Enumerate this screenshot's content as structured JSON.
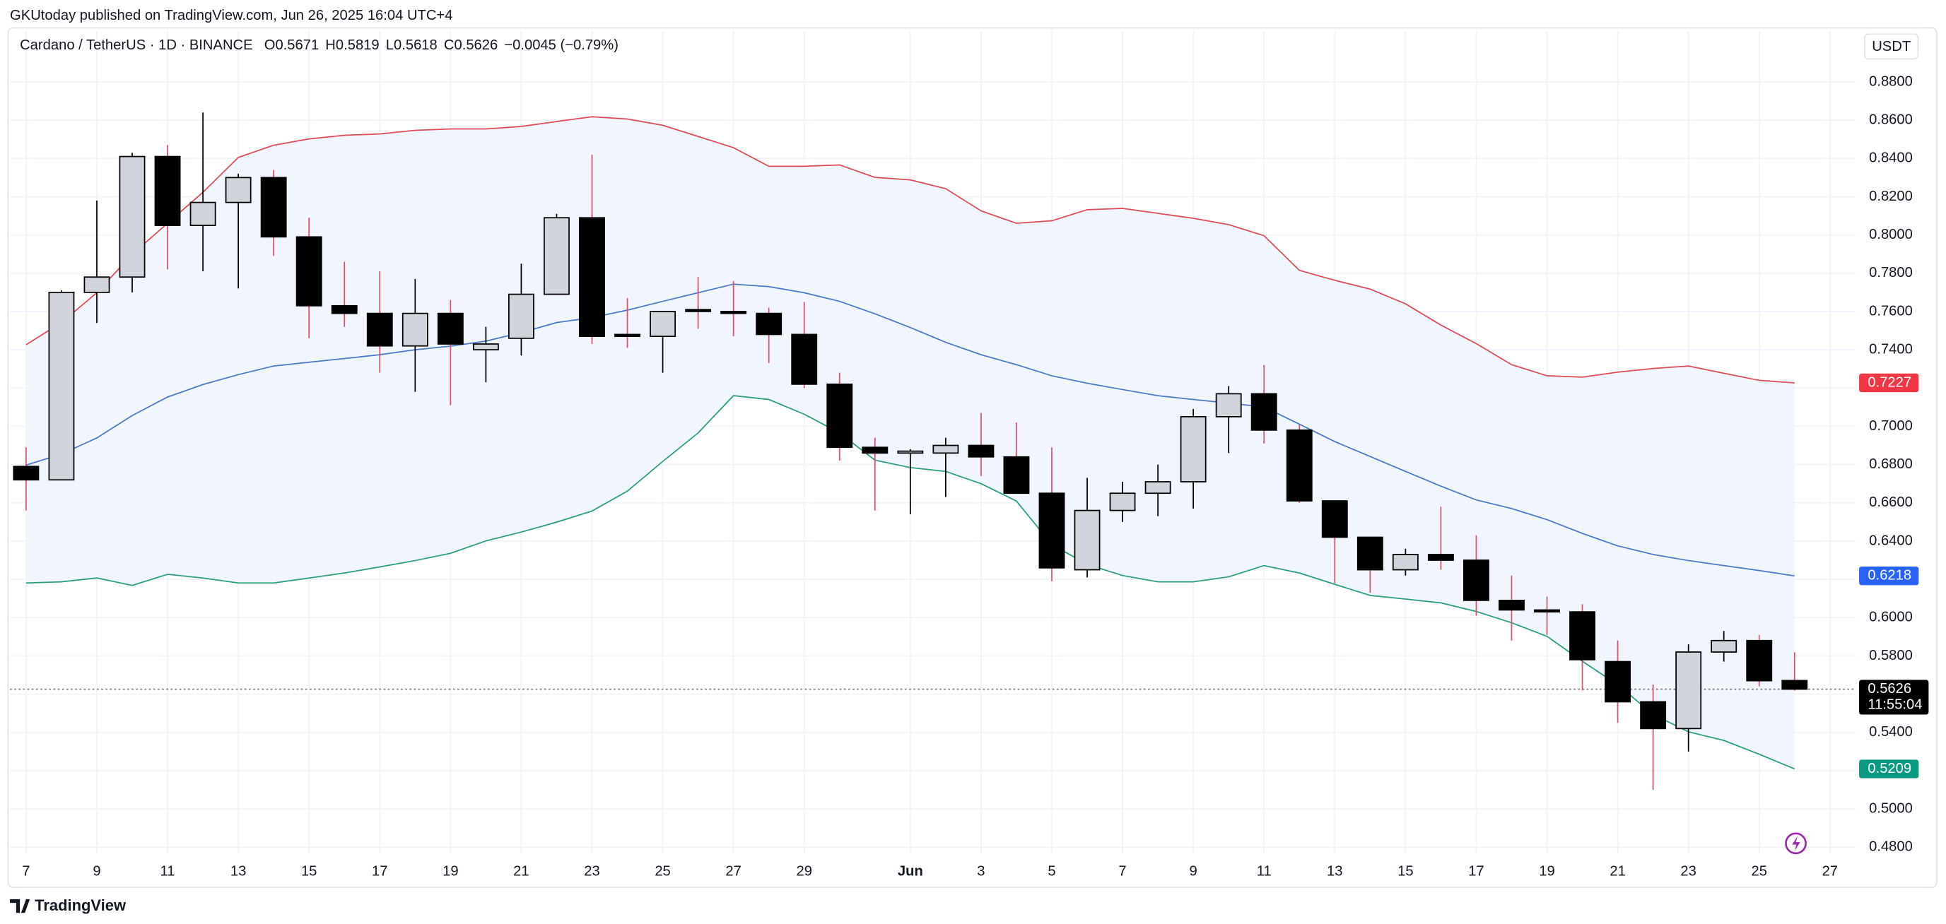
{
  "header": {
    "publisher": "GKUtoday published on TradingView.com, Jun 26, 2025 16:04 UTC+4",
    "symbol": "Cardano / TetherUS · 1D · BINANCE",
    "o": "O",
    "h": "H",
    "l": "L",
    "c": "C",
    "change": "−0.0045 (−0.79%)",
    "currency": "USDT",
    "countdown": "11:55:04",
    "brand": "TradingView"
  },
  "chart_data": {
    "type": "candlestick",
    "categories": [
      "7",
      null,
      "9",
      null,
      "11",
      null,
      "13",
      null,
      "15",
      null,
      "17",
      null,
      "19",
      null,
      "21",
      null,
      "23",
      null,
      "25",
      null,
      "27",
      null,
      "29",
      null,
      null,
      "Jun",
      null,
      "3",
      null,
      "5",
      null,
      "7",
      null,
      "9",
      null,
      "11",
      null,
      "13",
      null,
      "15",
      null,
      "17",
      null,
      "19",
      null,
      "21",
      null,
      "23",
      null,
      "25",
      null,
      "27"
    ],
    "open": [
      0.679,
      0.672,
      0.77,
      0.778,
      0.841,
      0.805,
      0.817,
      0.83,
      0.799,
      0.763,
      0.759,
      0.742,
      0.759,
      0.74,
      0.746,
      0.769,
      0.809,
      0.748,
      0.747,
      0.761,
      0.76,
      0.759,
      0.748,
      0.722,
      0.689,
      0.686,
      0.686,
      0.69,
      0.684,
      0.665,
      0.625,
      0.656,
      0.665,
      0.671,
      0.705,
      0.717,
      0.698,
      0.661,
      0.642,
      0.625,
      0.633,
      0.63,
      0.609,
      0.604,
      0.603,
      0.577,
      0.556,
      0.542,
      0.582,
      0.588,
      0.5671,
      null
    ],
    "high": [
      0.689,
      0.771,
      0.818,
      0.843,
      0.847,
      0.864,
      0.832,
      0.834,
      0.809,
      0.786,
      0.781,
      0.777,
      0.766,
      0.752,
      0.785,
      0.811,
      0.842,
      0.767,
      0.76,
      0.778,
      0.776,
      0.762,
      0.765,
      0.728,
      0.694,
      0.688,
      0.694,
      0.707,
      0.702,
      0.689,
      0.673,
      0.671,
      0.68,
      0.709,
      0.721,
      0.732,
      0.701,
      0.661,
      0.642,
      0.636,
      0.658,
      0.643,
      0.622,
      0.611,
      0.607,
      0.588,
      0.565,
      0.586,
      0.593,
      0.591,
      0.5819,
      null
    ],
    "low": [
      0.656,
      0.672,
      0.754,
      0.77,
      0.782,
      0.781,
      0.772,
      0.789,
      0.746,
      0.752,
      0.728,
      0.718,
      0.711,
      0.723,
      0.737,
      0.769,
      0.743,
      0.741,
      0.728,
      0.751,
      0.747,
      0.733,
      0.72,
      0.682,
      0.656,
      0.654,
      0.663,
      0.674,
      0.665,
      0.619,
      0.621,
      0.65,
      0.653,
      0.657,
      0.686,
      0.691,
      0.66,
      0.618,
      0.613,
      0.622,
      0.625,
      0.601,
      0.588,
      0.591,
      0.562,
      0.545,
      0.51,
      0.53,
      0.577,
      0.564,
      0.5618,
      null
    ],
    "close": [
      0.672,
      0.77,
      0.778,
      0.841,
      0.805,
      0.817,
      0.83,
      0.799,
      0.763,
      0.759,
      0.742,
      0.759,
      0.743,
      0.743,
      0.769,
      0.809,
      0.747,
      0.747,
      0.76,
      0.76,
      0.759,
      0.748,
      0.722,
      0.689,
      0.686,
      0.687,
      0.69,
      0.684,
      0.665,
      0.626,
      0.656,
      0.665,
      0.671,
      0.705,
      0.717,
      0.698,
      0.661,
      0.642,
      0.625,
      0.633,
      0.63,
      0.609,
      0.604,
      0.603,
      0.578,
      0.556,
      0.542,
      0.582,
      0.588,
      0.567,
      0.5626,
      null
    ],
    "up_color": "#d1d4dc",
    "down_color": "#000000",
    "up_wick": "#000000",
    "down_wick": "#e0506a",
    "lines": [
      {
        "color": "#e04a57",
        "values": [
          0.7426,
          0.7542,
          0.7698,
          0.7899,
          0.8061,
          0.8223,
          0.8405,
          0.8469,
          0.8502,
          0.8521,
          0.8528,
          0.8547,
          0.8554,
          0.8554,
          0.8567,
          0.8593,
          0.8618,
          0.8606,
          0.8573,
          0.8515,
          0.8456,
          0.8359,
          0.8359,
          0.8366,
          0.8301,
          0.8288,
          0.8242,
          0.8126,
          0.8061,
          0.8074,
          0.8132,
          0.8139,
          0.8113,
          0.8087,
          0.8054,
          0.7996,
          0.7815,
          0.7763,
          0.7717,
          0.764,
          0.7529,
          0.7432,
          0.7322,
          0.7264,
          0.7257,
          0.7283,
          0.7302,
          0.7315,
          0.7277,
          0.724,
          0.7227,
          null
        ]
      },
      {
        "color": "#4a78c8",
        "values": [
          0.6797,
          0.6855,
          0.6939,
          0.7056,
          0.7153,
          0.7218,
          0.727,
          0.7315,
          0.7335,
          0.7354,
          0.7374,
          0.74,
          0.7419,
          0.7445,
          0.749,
          0.7542,
          0.7568,
          0.7607,
          0.7653,
          0.7698,
          0.7743,
          0.773,
          0.7698,
          0.7653,
          0.7588,
          0.7516,
          0.7439,
          0.7374,
          0.7322,
          0.7264,
          0.7225,
          0.7192,
          0.716,
          0.714,
          0.7121,
          0.7101,
          0.7011,
          0.692,
          0.6842,
          0.6764,
          0.6687,
          0.6615,
          0.657,
          0.6512,
          0.644,
          0.6375,
          0.633,
          0.6298,
          0.6272,
          0.6246,
          0.6218,
          null
        ]
      },
      {
        "color": "#2a9d7e",
        "values": [
          0.6181,
          0.6187,
          0.6207,
          0.6168,
          0.6226,
          0.6207,
          0.6181,
          0.6181,
          0.6207,
          0.6233,
          0.6265,
          0.6298,
          0.6336,
          0.6401,
          0.6447,
          0.6499,
          0.6557,
          0.6661,
          0.6816,
          0.6965,
          0.716,
          0.714,
          0.7063,
          0.6965,
          0.6823,
          0.6784,
          0.6764,
          0.67,
          0.6609,
          0.6382,
          0.6278,
          0.622,
          0.6187,
          0.6187,
          0.6213,
          0.6272,
          0.6233,
          0.6174,
          0.6116,
          0.6097,
          0.6077,
          0.6032,
          0.5973,
          0.5902,
          0.5772,
          0.5649,
          0.5494,
          0.5403,
          0.5358,
          0.5286,
          0.5209,
          null
        ]
      }
    ],
    "band_fill": "#f1f6fe",
    "label_colors": [
      "#f23645",
      "#2962ff",
      "#089981"
    ],
    "last_price_color": "#000000",
    "ylim": [
      0.4768,
      0.9066
    ],
    "yticks": [
      {
        "value": 0.88,
        "label": "0.8800"
      },
      {
        "value": 0.86,
        "label": "0.8600"
      },
      {
        "value": 0.84,
        "label": "0.8400"
      },
      {
        "value": 0.82,
        "label": "0.8200"
      },
      {
        "value": 0.8,
        "label": "0.8000"
      },
      {
        "value": 0.78,
        "label": "0.7800"
      },
      {
        "value": 0.76,
        "label": "0.7600"
      },
      {
        "value": 0.74,
        "label": "0.7400"
      },
      {
        "value": 0.72,
        "label": "0.7200"
      },
      {
        "value": 0.7,
        "label": "0.7000"
      },
      {
        "value": 0.68,
        "label": "0.6800"
      },
      {
        "value": 0.66,
        "label": "0.6600"
      },
      {
        "value": 0.64,
        "label": "0.6400"
      },
      {
        "value": 0.62,
        "label": "0.6200"
      },
      {
        "value": 0.6,
        "label": "0.6000"
      },
      {
        "value": 0.58,
        "label": "0.5800"
      },
      {
        "value": 0.56,
        "label": "0.5600"
      },
      {
        "value": 0.54,
        "label": "0.5400"
      },
      {
        "value": 0.52,
        "label": "0.5200"
      },
      {
        "value": 0.5,
        "label": "0.5000"
      },
      {
        "value": 0.48,
        "label": "0.4800"
      }
    ],
    "grid": true
  }
}
